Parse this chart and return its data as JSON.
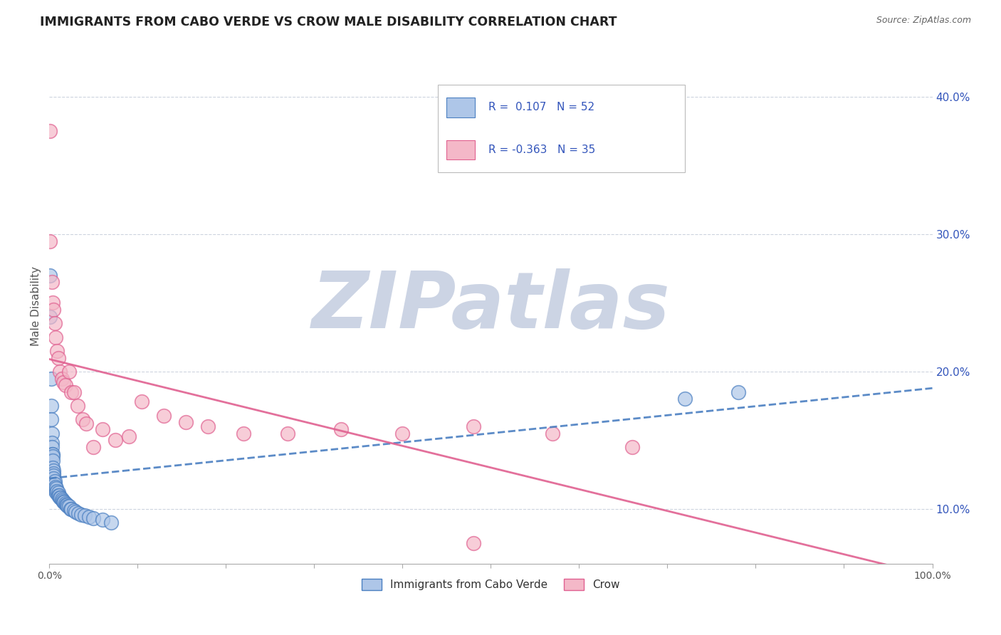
{
  "title": "IMMIGRANTS FROM CABO VERDE VS CROW MALE DISABILITY CORRELATION CHART",
  "source": "Source: ZipAtlas.com",
  "ylabel": "Male Disability",
  "legend_label1": "Immigrants from Cabo Verde",
  "legend_label2": "Crow",
  "r1": 0.107,
  "n1": 52,
  "r2": -0.363,
  "n2": 35,
  "xlim": [
    0.0,
    1.0
  ],
  "ylim": [
    0.06,
    0.435
  ],
  "x_ticks": [
    0.0,
    0.1,
    0.2,
    0.3,
    0.4,
    0.5,
    0.6,
    0.7,
    0.8,
    0.9,
    1.0
  ],
  "x_tick_labels_show": [
    "0.0%",
    "",
    "",
    "",
    "",
    "",
    "",
    "",
    "",
    "",
    "100.0%"
  ],
  "y_ticks": [
    0.1,
    0.2,
    0.3,
    0.4
  ],
  "y_tick_labels": [
    "10.0%",
    "20.0%",
    "30.0%",
    "40.0%"
  ],
  "color_blue": "#aec6e8",
  "color_pink": "#f4b8c8",
  "color_blue_line": "#4a7fc1",
  "color_pink_line": "#e06090",
  "color_grid": "#c8d0dc",
  "color_title": "#222222",
  "color_source": "#666666",
  "color_legend_text": "#3355bb",
  "background": "#ffffff",
  "watermark": "ZIPatlas",
  "watermark_color": "#ccd4e4",
  "cabo_verde_x": [
    0.001,
    0.001,
    0.002,
    0.002,
    0.002,
    0.003,
    0.003,
    0.003,
    0.003,
    0.004,
    0.004,
    0.004,
    0.004,
    0.005,
    0.005,
    0.005,
    0.005,
    0.006,
    0.006,
    0.006,
    0.007,
    0.007,
    0.008,
    0.008,
    0.009,
    0.01,
    0.01,
    0.011,
    0.012,
    0.013,
    0.014,
    0.015,
    0.016,
    0.017,
    0.018,
    0.019,
    0.02,
    0.021,
    0.022,
    0.024,
    0.025,
    0.028,
    0.03,
    0.033,
    0.036,
    0.04,
    0.045,
    0.05,
    0.06,
    0.07,
    0.72,
    0.78
  ],
  "cabo_verde_y": [
    0.27,
    0.24,
    0.195,
    0.175,
    0.165,
    0.155,
    0.148,
    0.145,
    0.14,
    0.14,
    0.138,
    0.135,
    0.13,
    0.128,
    0.126,
    0.124,
    0.122,
    0.12,
    0.118,
    0.115,
    0.116,
    0.113,
    0.115,
    0.112,
    0.113,
    0.112,
    0.11,
    0.11,
    0.108,
    0.108,
    0.107,
    0.106,
    0.105,
    0.105,
    0.104,
    0.103,
    0.103,
    0.102,
    0.102,
    0.1,
    0.1,
    0.099,
    0.098,
    0.097,
    0.096,
    0.095,
    0.094,
    0.093,
    0.092,
    0.09,
    0.18,
    0.185
  ],
  "crow_x": [
    0.001,
    0.001,
    0.003,
    0.004,
    0.005,
    0.006,
    0.007,
    0.009,
    0.01,
    0.012,
    0.014,
    0.016,
    0.018,
    0.022,
    0.025,
    0.028,
    0.032,
    0.038,
    0.042,
    0.05,
    0.06,
    0.075,
    0.09,
    0.105,
    0.13,
    0.155,
    0.18,
    0.22,
    0.27,
    0.33,
    0.4,
    0.48,
    0.57,
    0.66,
    0.48
  ],
  "crow_y": [
    0.375,
    0.295,
    0.265,
    0.25,
    0.245,
    0.235,
    0.225,
    0.215,
    0.21,
    0.2,
    0.195,
    0.192,
    0.19,
    0.2,
    0.185,
    0.185,
    0.175,
    0.165,
    0.162,
    0.145,
    0.158,
    0.15,
    0.153,
    0.178,
    0.168,
    0.163,
    0.16,
    0.155,
    0.155,
    0.158,
    0.155,
    0.16,
    0.155,
    0.145,
    0.075
  ]
}
